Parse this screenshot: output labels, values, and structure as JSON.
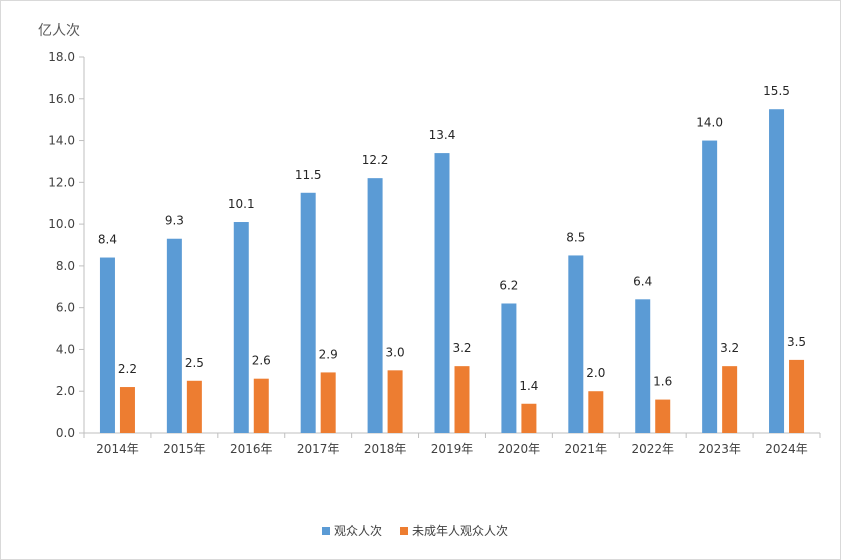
{
  "chart_data": {
    "type": "bar",
    "ylabel": "亿人次",
    "ylim": [
      0,
      18
    ],
    "yticks": [
      "0.0",
      "2.0",
      "4.0",
      "6.0",
      "8.0",
      "10.0",
      "12.0",
      "14.0",
      "16.0",
      "18.0"
    ],
    "categories": [
      "2014年",
      "2015年",
      "2016年",
      "2017年",
      "2018年",
      "2019年",
      "2020年",
      "2021年",
      "2022年",
      "2023年",
      "2024年"
    ],
    "series": [
      {
        "name": "观众人次",
        "color": "#5b9bd5",
        "values": [
          8.4,
          9.3,
          10.1,
          11.5,
          12.2,
          13.4,
          6.2,
          8.5,
          6.4,
          14.0,
          15.5
        ],
        "labels": [
          "8.4",
          "9.3",
          "10.1",
          "11.5",
          "12.2",
          "13.4",
          "6.2",
          "8.5",
          "6.4",
          "14.0",
          "15.5"
        ]
      },
      {
        "name": "未成年人观众人次",
        "color": "#ed7d31",
        "values": [
          2.2,
          2.5,
          2.6,
          2.9,
          3.0,
          3.2,
          1.4,
          2.0,
          1.6,
          3.2,
          3.5
        ],
        "labels": [
          "2.2",
          "2.5",
          "2.6",
          "2.9",
          "3.0",
          "3.2",
          "1.4",
          "2.0",
          "1.6",
          "3.2",
          "3.5"
        ]
      }
    ],
    "legend": "bottom",
    "grid": false
  }
}
